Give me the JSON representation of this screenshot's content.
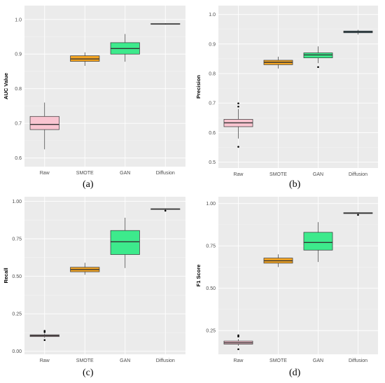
{
  "colors": {
    "Raw": "#f9c5d1",
    "SMOTE": "#f5a623",
    "GAN": "#3dea8c",
    "Diffusion": "#3a8fa8"
  },
  "chart_data": [
    {
      "type": "box",
      "panel_label": "(a)",
      "categories": [
        "Raw",
        "SMOTE",
        "GAN",
        "Diffusion"
      ],
      "ylabel": "AUC Value",
      "ylim": [
        0.575,
        1.04
      ],
      "yticks": [
        0.6,
        0.7,
        0.8,
        0.9,
        1.0
      ],
      "ytick_labels": [
        "0.6",
        "0.7",
        "0.8",
        "0.9",
        "1.0"
      ],
      "boxes": [
        {
          "name": "Raw",
          "min": 0.625,
          "q1": 0.682,
          "median": 0.697,
          "q3": 0.72,
          "max": 0.76,
          "outliers": []
        },
        {
          "name": "SMOTE",
          "min": 0.866,
          "q1": 0.879,
          "median": 0.886,
          "q3": 0.895,
          "max": 0.905,
          "outliers": []
        },
        {
          "name": "GAN",
          "min": 0.878,
          "q1": 0.9,
          "median": 0.916,
          "q3": 0.933,
          "max": 0.958,
          "outliers": []
        },
        {
          "name": "Diffusion",
          "min": 0.985,
          "q1": 0.986,
          "median": 0.987,
          "q3": 0.988,
          "max": 0.989,
          "outliers": []
        }
      ]
    },
    {
      "type": "box",
      "panel_label": "(b)",
      "categories": [
        "Raw",
        "SMOTE",
        "GAN",
        "Diffusion"
      ],
      "ylabel": "Precision",
      "ylim": [
        0.48,
        1.03
      ],
      "yticks": [
        0.5,
        0.6,
        0.7,
        0.8,
        0.9,
        1.0
      ],
      "ytick_labels": [
        "0.5",
        "0.6",
        "0.7",
        "0.8",
        "0.9",
        "1.0"
      ],
      "boxes": [
        {
          "name": "Raw",
          "min": 0.58,
          "q1": 0.62,
          "median": 0.633,
          "q3": 0.645,
          "max": 0.68,
          "outliers": [
            0.552,
            0.688,
            0.699
          ]
        },
        {
          "name": "SMOTE",
          "min": 0.817,
          "q1": 0.83,
          "median": 0.838,
          "q3": 0.845,
          "max": 0.857,
          "outliers": []
        },
        {
          "name": "GAN",
          "min": 0.835,
          "q1": 0.853,
          "median": 0.863,
          "q3": 0.87,
          "max": 0.892,
          "outliers": [
            0.822
          ]
        },
        {
          "name": "Diffusion",
          "min": 0.932,
          "q1": 0.938,
          "median": 0.941,
          "q3": 0.944,
          "max": 0.948,
          "outliers": []
        }
      ]
    },
    {
      "type": "box",
      "panel_label": "(c)",
      "categories": [
        "Raw",
        "SMOTE",
        "GAN",
        "Diffusion"
      ],
      "ylabel": "Recall",
      "ylim": [
        -0.02,
        1.03
      ],
      "yticks": [
        0.0,
        0.25,
        0.5,
        0.75,
        1.0
      ],
      "ytick_labels": [
        "0.00",
        "0.25",
        "0.50",
        "0.75",
        "1.00"
      ],
      "boxes": [
        {
          "name": "Raw",
          "min": 0.09,
          "q1": 0.098,
          "median": 0.104,
          "q3": 0.11,
          "max": 0.118,
          "outliers": [
            0.075,
            0.128,
            0.136
          ]
        },
        {
          "name": "SMOTE",
          "min": 0.51,
          "q1": 0.53,
          "median": 0.545,
          "q3": 0.56,
          "max": 0.59,
          "outliers": []
        },
        {
          "name": "GAN",
          "min": 0.555,
          "q1": 0.645,
          "median": 0.73,
          "q3": 0.805,
          "max": 0.89,
          "outliers": []
        },
        {
          "name": "Diffusion",
          "min": 0.943,
          "q1": 0.946,
          "median": 0.948,
          "q3": 0.95,
          "max": 0.952,
          "outliers": [
            0.937
          ]
        }
      ]
    },
    {
      "type": "box",
      "panel_label": "(d)",
      "categories": [
        "Raw",
        "SMOTE",
        "GAN",
        "Diffusion"
      ],
      "ylabel": "F1 Score",
      "ylim": [
        0.11,
        1.04
      ],
      "yticks": [
        0.25,
        0.5,
        0.75,
        1.0
      ],
      "ytick_labels": [
        "0.25",
        "0.50",
        "0.75",
        "1.00"
      ],
      "boxes": [
        {
          "name": "Raw",
          "min": 0.16,
          "q1": 0.17,
          "median": 0.178,
          "q3": 0.188,
          "max": 0.2,
          "outliers": [
            0.14,
            0.215,
            0.222
          ]
        },
        {
          "name": "SMOTE",
          "min": 0.625,
          "q1": 0.648,
          "median": 0.662,
          "q3": 0.678,
          "max": 0.7,
          "outliers": []
        },
        {
          "name": "GAN",
          "min": 0.655,
          "q1": 0.725,
          "median": 0.77,
          "q3": 0.83,
          "max": 0.89,
          "outliers": []
        },
        {
          "name": "Diffusion",
          "min": 0.938,
          "q1": 0.941,
          "median": 0.943,
          "q3": 0.946,
          "max": 0.948,
          "outliers": [
            0.933
          ]
        }
      ]
    }
  ]
}
